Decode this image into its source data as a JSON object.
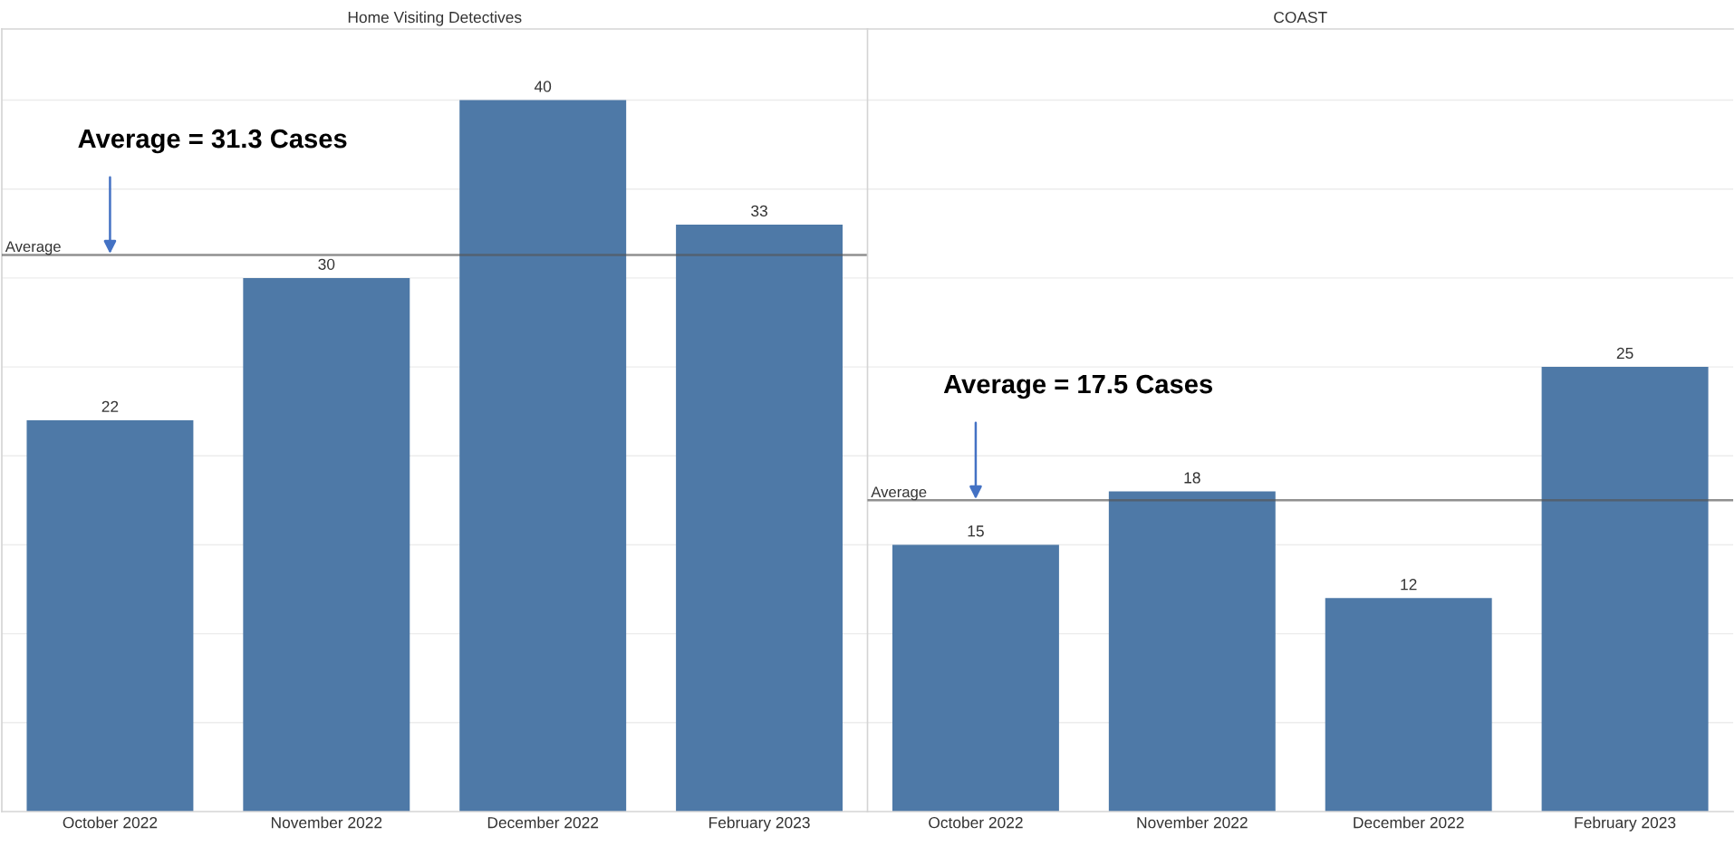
{
  "chart_data": [
    {
      "type": "bar",
      "title": "Home Visiting Detectives",
      "categories": [
        "October 2022",
        "November 2022",
        "December 2022",
        "February 2023"
      ],
      "values": [
        22,
        30,
        40,
        33
      ],
      "color": "#4e79a7",
      "data_labels": true,
      "ylim": [
        0,
        44
      ],
      "yticks": [
        {
          "value": 5,
          "label": null
        },
        {
          "value": 10,
          "label": null
        },
        {
          "value": 15,
          "label": null
        },
        {
          "value": 20,
          "label": null
        },
        {
          "value": 25,
          "label": null
        },
        {
          "value": 30,
          "label": null
        },
        {
          "value": 35,
          "label": null
        },
        {
          "value": 40,
          "label": null
        }
      ],
      "tick_labels": "x",
      "grid": "y",
      "ref_lines": [
        {
          "axis": "y",
          "value": 31.3,
          "label": "Average",
          "color": "#555555"
        }
      ],
      "annotations": [
        {
          "text": "Average = 31.3 Cases",
          "x": "October 2022",
          "y": 31.3
        }
      ]
    },
    {
      "type": "bar",
      "title": "COAST",
      "categories": [
        "October 2022",
        "November 2022",
        "December 2022",
        "February 2023"
      ],
      "values": [
        15,
        18,
        12,
        25
      ],
      "color": "#4e79a7",
      "data_labels": true,
      "ylim": [
        0,
        44
      ],
      "yticks": [
        {
          "value": 5,
          "label": null
        },
        {
          "value": 10,
          "label": null
        },
        {
          "value": 15,
          "label": null
        },
        {
          "value": 20,
          "label": null
        },
        {
          "value": 25,
          "label": null
        },
        {
          "value": 30,
          "label": null
        },
        {
          "value": 35,
          "label": null
        },
        {
          "value": 40,
          "label": null
        }
      ],
      "tick_labels": "x",
      "grid": "y",
      "ref_lines": [
        {
          "axis": "y",
          "value": 17.5,
          "label": "Average",
          "color": "#555555"
        }
      ],
      "annotations": [
        {
          "text": "Average = 17.5 Cases",
          "x": "October 2022",
          "y": 17.5
        }
      ]
    }
  ]
}
